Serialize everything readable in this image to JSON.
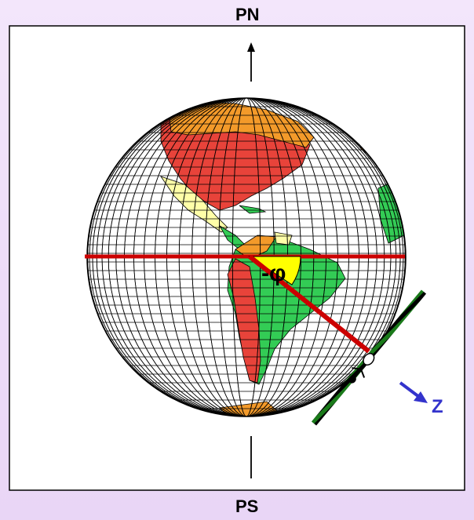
{
  "labels": {
    "north_pole": "PN",
    "south_pole": "PS",
    "angle": "-φ",
    "zenith": "Z"
  },
  "colors": {
    "background": "#eedff8",
    "frame": "#000000",
    "equator": "#cc0000",
    "angle_fill": "#ffff00",
    "zenith_arrow": "#3333cc",
    "horizon_stripe_a": "#1a7a1a",
    "horizon_stripe_b": "#000000",
    "country_green": "#33cc55",
    "country_red": "#e8433a",
    "country_orange": "#f39a2a",
    "country_yellow": "#ffffa8"
  },
  "icons": {
    "observer": "observer-figure-icon",
    "north_arrow": "arrow-up-icon",
    "zenith_arrow": "arrow-down-right-icon"
  }
}
